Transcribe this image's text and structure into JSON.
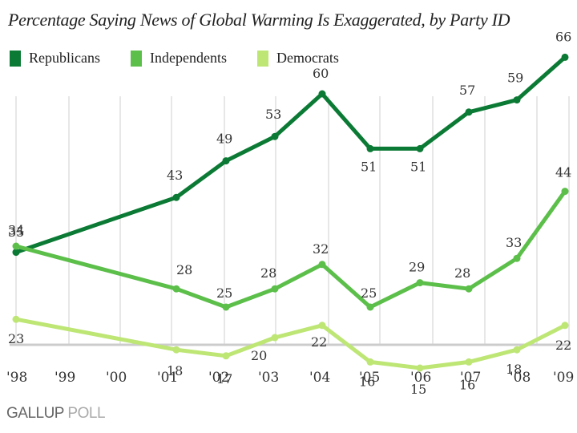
{
  "chart_data": {
    "type": "line",
    "title": "Percentage Saying News of Global Warming Is Exaggerated, by Party ID",
    "xlabel": "",
    "ylabel": "",
    "x": [
      "'98",
      "'99",
      "'00",
      "'01",
      "'02",
      "'03",
      "'04",
      "'05",
      "'06",
      "'07",
      "'08",
      "'09"
    ],
    "x_points": [
      "'98",
      "'01",
      "'02",
      "'03",
      "'04",
      "'05",
      "'06",
      "'07",
      "'08",
      "'09"
    ],
    "ylim": [
      0,
      70
    ],
    "grid": "vertical",
    "legend_position": "top-left",
    "series": [
      {
        "name": "Republicans",
        "color": "#0b7a34",
        "values": [
          34,
          43,
          49,
          53,
          60,
          51,
          51,
          57,
          59,
          66
        ]
      },
      {
        "name": "Independents",
        "color": "#5cbf4a",
        "values": [
          35,
          28,
          25,
          28,
          32,
          25,
          29,
          28,
          33,
          44
        ]
      },
      {
        "name": "Democrats",
        "color": "#bde675",
        "values": [
          23,
          18,
          17,
          20,
          22,
          16,
          15,
          16,
          18,
          22
        ]
      }
    ]
  },
  "brand": {
    "primary": "GALLUP",
    "secondary": "POLL"
  }
}
